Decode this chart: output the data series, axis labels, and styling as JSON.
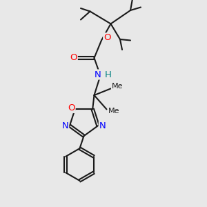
{
  "background_color": "#e8e8e8",
  "bond_color": "#1a1a1a",
  "atom_colors": {
    "O": "#ff0000",
    "N": "#0000ff",
    "H": "#008080",
    "C": "#1a1a1a"
  },
  "bond_width": 1.5,
  "font_size_atoms": 9.5,
  "font_size_small": 8.0
}
